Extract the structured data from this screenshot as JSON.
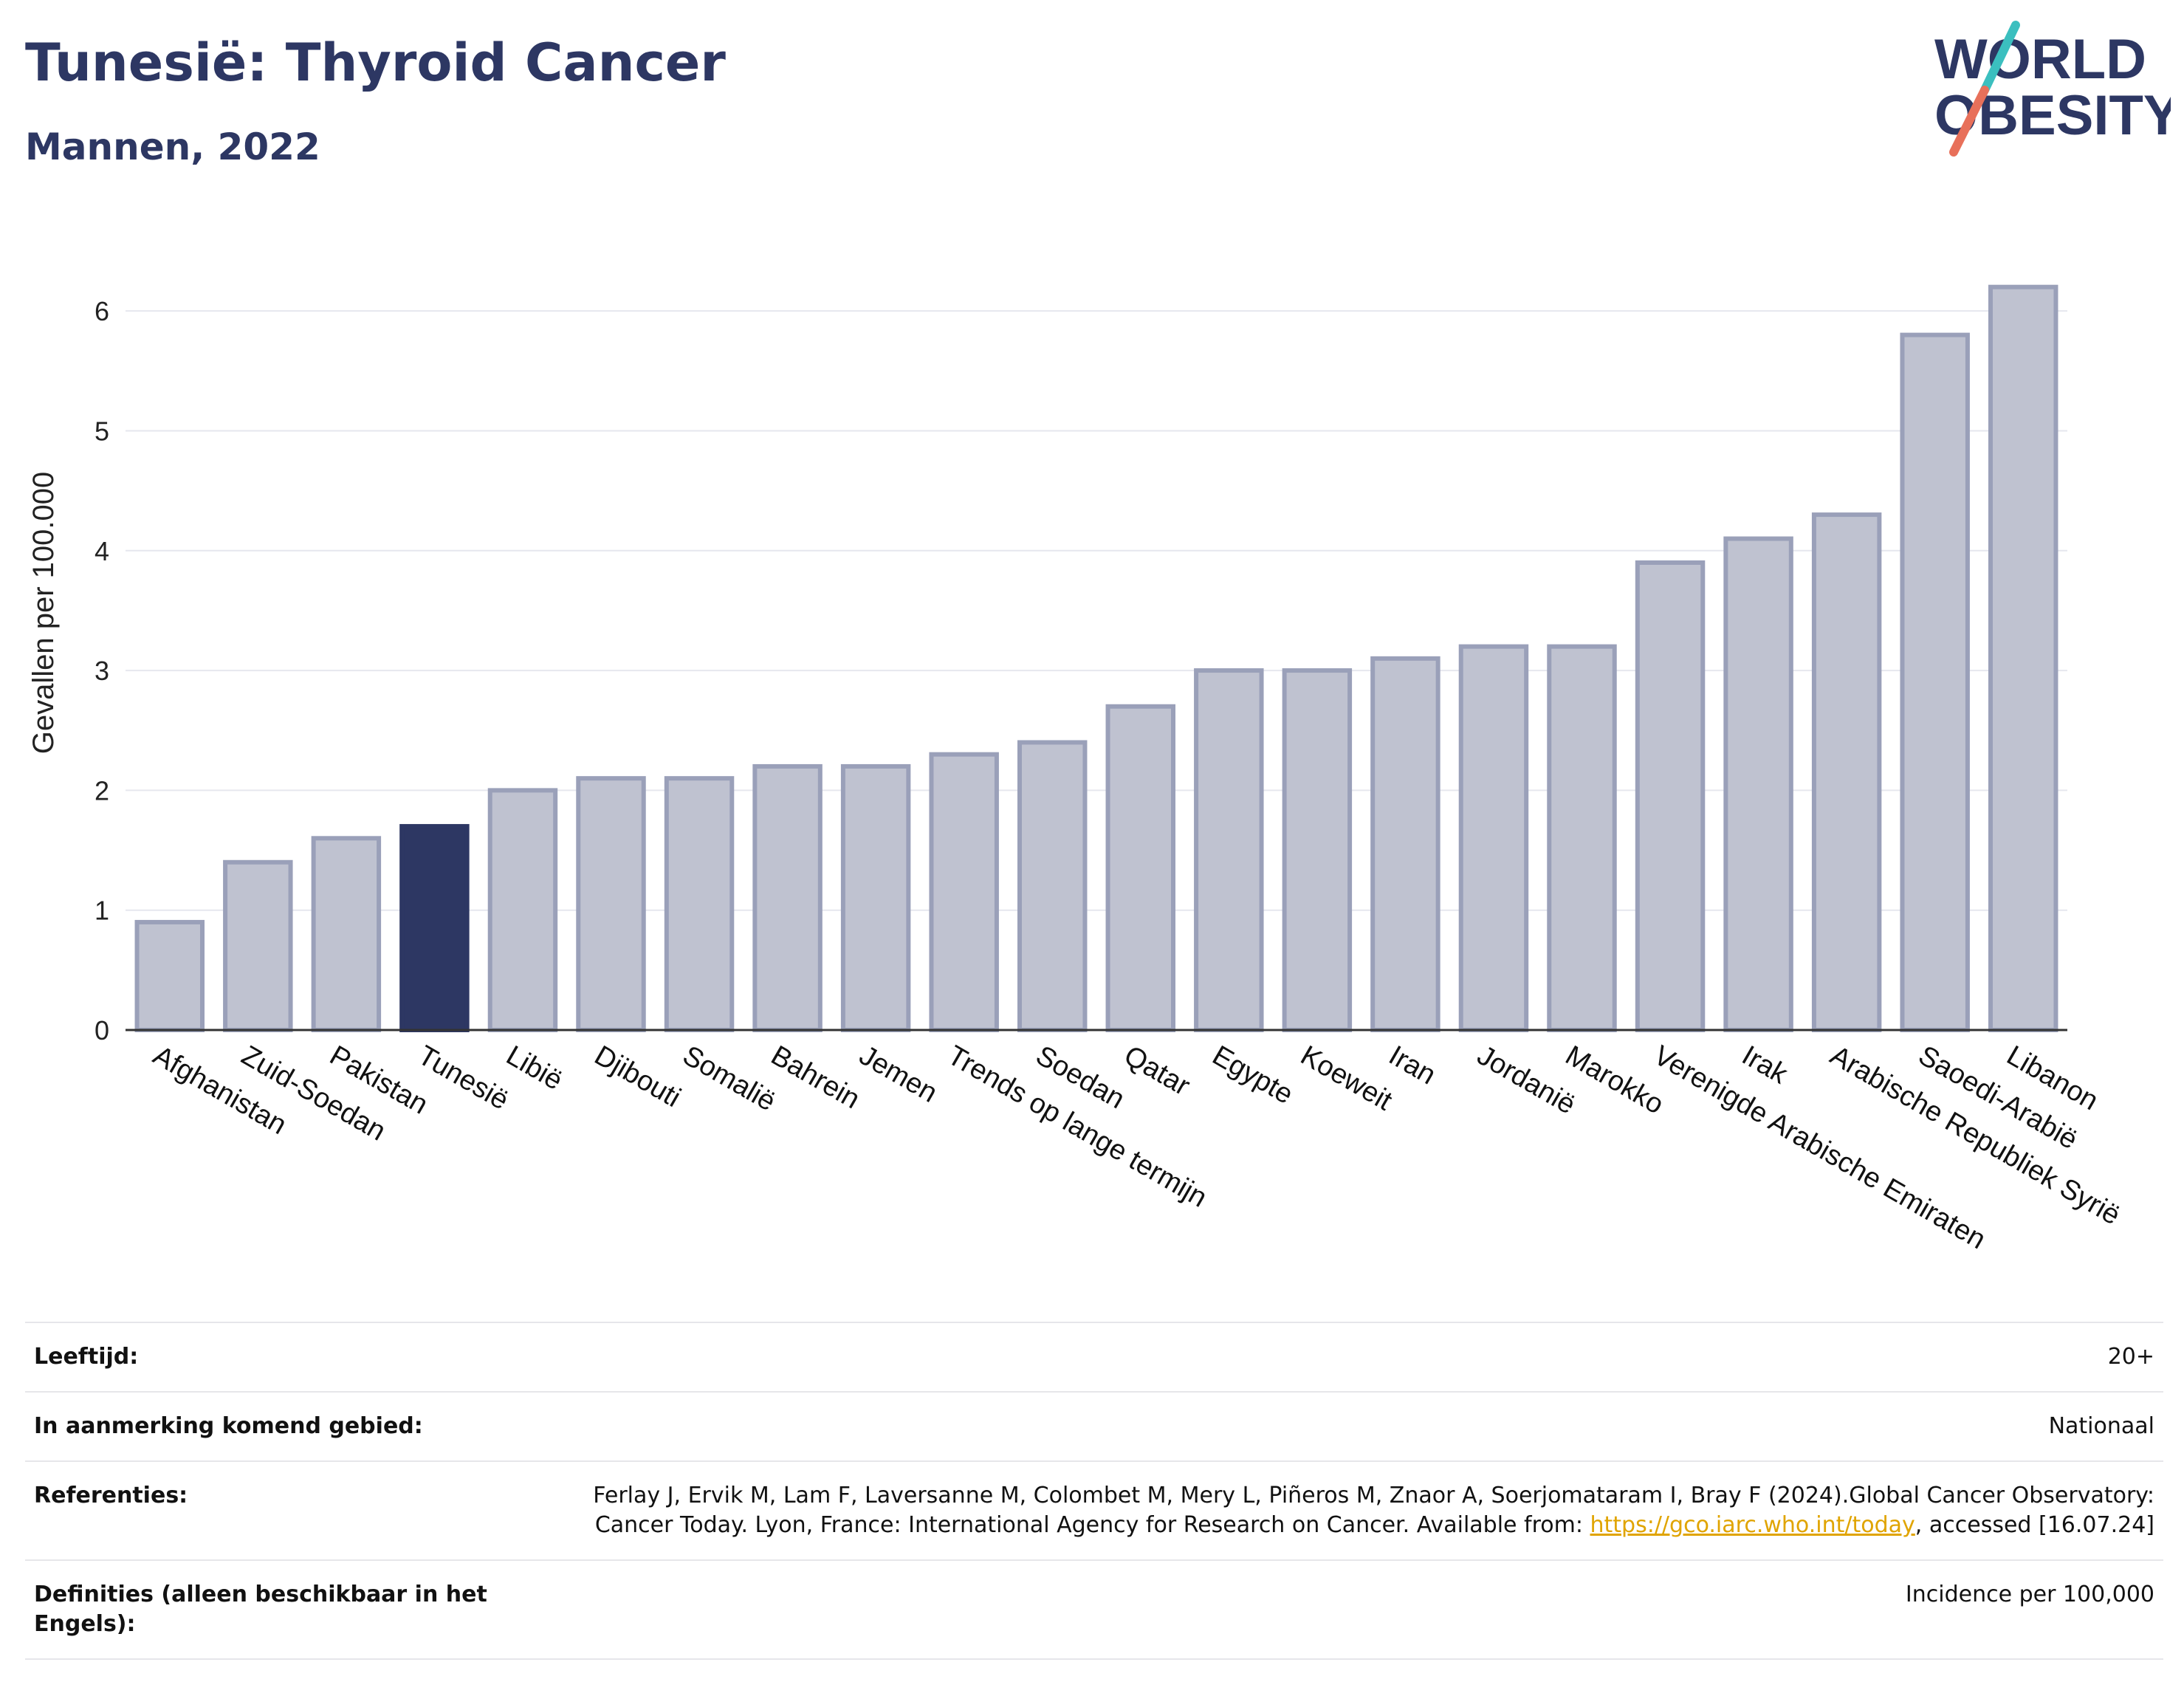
{
  "header": {
    "title": "Tunesië: Thyroid Cancer",
    "subtitle": "Mannen, 2022"
  },
  "logo": {
    "line1": "WORLD",
    "line2": "OBESITY"
  },
  "colors": {
    "highlight": "#2d3763",
    "bar": "#bfc2d0",
    "bar_border": "#9aa0b9",
    "brand_teal": "#3bbfbf",
    "brand_red": "#e8705a"
  },
  "chart_data": {
    "type": "bar",
    "ylabel": "Gevallen per 100.000",
    "xlabel": "",
    "ylim": [
      0,
      6.5
    ],
    "yticks": [
      0,
      1,
      2,
      3,
      4,
      5,
      6
    ],
    "grid": true,
    "highlight": "Tunesië",
    "categories": [
      "Afghanistan",
      "Zuid-Soedan",
      "Pakistan",
      "Tunesië",
      "Libië",
      "Djibouti",
      "Somalië",
      "Bahrein",
      "Jemen",
      "Trends op lange termijn",
      "Soedan",
      "Qatar",
      "Egypte",
      "Koeweit",
      "Iran",
      "Jordanië",
      "Marokko",
      "Verenigde Arabische Emiraten",
      "Irak",
      "Arabische Republiek Syrië",
      "Saoedi-Arabië",
      "Libanon"
    ],
    "values": [
      0.9,
      1.4,
      1.6,
      1.7,
      2.0,
      2.1,
      2.1,
      2.2,
      2.2,
      2.3,
      2.4,
      2.7,
      3.0,
      3.0,
      3.1,
      3.2,
      3.2,
      3.9,
      4.1,
      4.3,
      5.8,
      6.2
    ]
  },
  "meta": {
    "age_label": "Leeftijd:",
    "age_value": "20+",
    "area_label": "In aanmerking komend gebied:",
    "area_value": "Nationaal",
    "ref_label": "Referenties:",
    "ref_text_1": "Ferlay J, Ervik M, Lam F, Laversanne M, Colombet M, Mery L, Piñeros M, Znaor A, Soerjomataram I, Bray F (2024).Global Cancer Observatory: Cancer Today. Lyon, France: International Agency for Research on Cancer. Available from: ",
    "ref_link": "https://gco.iarc.who.int/today",
    "ref_text_2": ", accessed [16.07.24]",
    "def_label": "Definities (alleen beschikbaar in het Engels):",
    "def_value": "Incidence per 100,000"
  }
}
